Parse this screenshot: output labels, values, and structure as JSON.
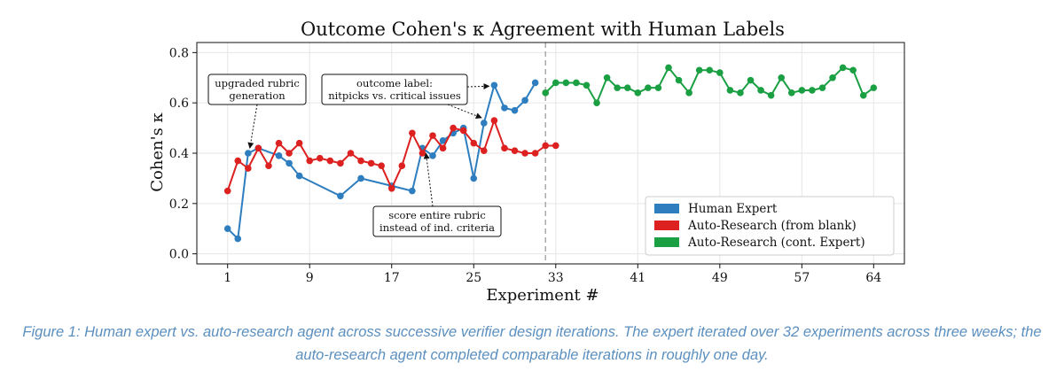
{
  "chart_data": {
    "type": "line",
    "title": "Outcome Cohen's κ Agreement with Human Labels",
    "xlabel": "Experiment #",
    "ylabel": "Cohen's κ",
    "xlim": [
      -2,
      67
    ],
    "ylim": [
      -0.04,
      0.84
    ],
    "xticks": [
      1,
      9,
      17,
      25,
      33,
      41,
      49,
      57,
      64
    ],
    "yticks": [
      0.0,
      0.2,
      0.4,
      0.6,
      0.8
    ],
    "ytick_labels": [
      "0.0",
      "0.2",
      "0.4",
      "0.6",
      "0.8"
    ],
    "grid": true,
    "legend_position": "lower-right",
    "divider_x": 32,
    "series": [
      {
        "name": "Human Expert",
        "color": "#2e7ebf",
        "x": [
          1,
          2,
          3,
          4,
          6,
          7,
          8,
          12,
          14,
          17,
          19,
          20,
          21,
          22,
          23,
          24,
          25,
          26,
          27,
          28,
          29,
          30,
          31
        ],
        "y": [
          0.1,
          0.06,
          0.4,
          0.42,
          0.39,
          0.36,
          0.31,
          0.23,
          0.3,
          0.27,
          0.25,
          0.42,
          0.39,
          0.45,
          0.48,
          0.5,
          0.3,
          0.52,
          0.67,
          0.58,
          0.57,
          0.61,
          0.68
        ]
      },
      {
        "name": "Auto-Research (from blank)",
        "color": "#dd2020",
        "x": [
          1,
          2,
          3,
          4,
          5,
          6,
          7,
          8,
          9,
          10,
          11,
          12,
          13,
          14,
          15,
          16,
          17,
          18,
          19,
          20,
          21,
          22,
          23,
          24,
          25,
          26,
          27,
          28,
          29,
          30,
          31,
          32,
          33
        ],
        "y": [
          0.25,
          0.37,
          0.34,
          0.42,
          0.35,
          0.44,
          0.4,
          0.44,
          0.37,
          0.38,
          0.37,
          0.36,
          0.4,
          0.37,
          0.36,
          0.35,
          0.26,
          0.35,
          0.48,
          0.4,
          0.47,
          0.42,
          0.5,
          0.49,
          0.44,
          0.41,
          0.53,
          0.42,
          0.41,
          0.4,
          0.4,
          0.43,
          0.43
        ]
      },
      {
        "name": "Auto-Research (cont. Expert)",
        "color": "#1aa043",
        "x": [
          32,
          33,
          34,
          35,
          36,
          37,
          38,
          39,
          40,
          41,
          42,
          43,
          44,
          45,
          46,
          47,
          48,
          49,
          50,
          51,
          52,
          53,
          54,
          55,
          56,
          57,
          58,
          59,
          60,
          61,
          62,
          63,
          64
        ],
        "y": [
          0.64,
          0.68,
          0.68,
          0.68,
          0.67,
          0.6,
          0.7,
          0.66,
          0.66,
          0.64,
          0.66,
          0.66,
          0.74,
          0.69,
          0.64,
          0.73,
          0.73,
          0.72,
          0.65,
          0.64,
          0.69,
          0.65,
          0.63,
          0.7,
          0.64,
          0.65,
          0.65,
          0.66,
          0.7,
          0.74,
          0.73,
          0.63,
          0.66
        ]
      }
    ],
    "annotations": [
      {
        "lines": [
          "upgraded rubric",
          "generation"
        ],
        "point": [
          3,
          0.4
        ]
      },
      {
        "lines": [
          "score entire rubric",
          "instead of ind. criteria"
        ],
        "point": [
          20,
          0.42
        ]
      },
      {
        "lines": [
          "outcome label:",
          "nitpicks vs. critical issues"
        ],
        "point": [
          27,
          0.67
        ],
        "point2": [
          26,
          0.52
        ]
      }
    ]
  },
  "caption": "Figure 1: Human expert vs. auto-research agent across successive verifier design iterations. The expert iterated over 32 experiments across three weeks; the auto-research agent completed comparable iterations in roughly one day."
}
